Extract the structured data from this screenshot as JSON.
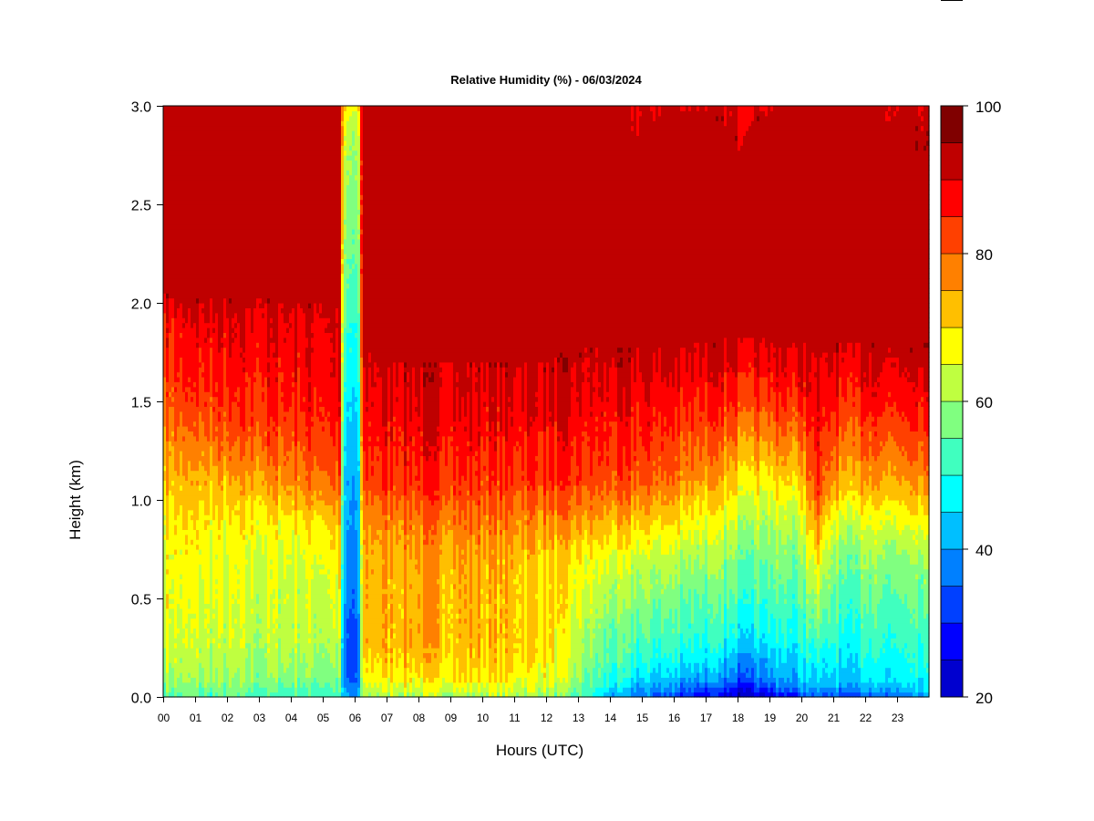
{
  "chart_data": {
    "type": "heatmap",
    "title": "Relative Humidity (%) - 06/03/2024",
    "xlabel": "Hours (UTC)",
    "ylabel": "Height (km)",
    "x_range": [
      0,
      24
    ],
    "y_range": [
      0.0,
      3.0
    ],
    "x_ticks": [
      "00",
      "01",
      "02",
      "03",
      "04",
      "05",
      "06",
      "07",
      "08",
      "09",
      "10",
      "11",
      "12",
      "13",
      "14",
      "15",
      "16",
      "17",
      "18",
      "19",
      "20",
      "21",
      "22",
      "23"
    ],
    "y_ticks": [
      "0.0",
      "0.5",
      "1.0",
      "1.5",
      "2.0",
      "2.5",
      "3.0"
    ],
    "colorbar": {
      "range": [
        20,
        100
      ],
      "tick_labels": [
        "20",
        "40",
        "60",
        "80",
        "100"
      ],
      "levels": [
        20,
        25,
        30,
        35,
        40,
        45,
        50,
        55,
        60,
        65,
        70,
        75,
        80,
        85,
        90,
        95,
        100
      ],
      "colors": [
        "#00008f",
        "#0000cf",
        "#0000ff",
        "#0040ff",
        "#0080ff",
        "#00bfff",
        "#00ffff",
        "#40ffbf",
        "#80ff80",
        "#bfff40",
        "#ffff00",
        "#ffbf00",
        "#ff8000",
        "#ff4000",
        "#ff0000",
        "#bf0000",
        "#800000"
      ]
    },
    "profile_heights_km": [
      0.0,
      0.05,
      0.1,
      0.2,
      0.3,
      0.5,
      0.7,
      0.9,
      1.1,
      1.3,
      1.5,
      1.7,
      1.9,
      2.1,
      2.5,
      2.9,
      3.0
    ],
    "profiles": [
      {
        "hour": 0.0,
        "rh": [
          60,
          63,
          66,
          68,
          70,
          72,
          72,
          74,
          78,
          82,
          86,
          90,
          92,
          99,
          99,
          99,
          99
        ]
      },
      {
        "hour": 1.0,
        "rh": [
          58,
          62,
          65,
          67,
          68,
          70,
          72,
          74,
          78,
          83,
          88,
          91,
          94,
          99,
          99,
          99,
          99
        ]
      },
      {
        "hour": 2.0,
        "rh": [
          58,
          62,
          64,
          66,
          68,
          69,
          70,
          73,
          78,
          84,
          89,
          92,
          94,
          99,
          99,
          99,
          99
        ]
      },
      {
        "hour": 3.0,
        "rh": [
          57,
          61,
          63,
          65,
          67,
          68,
          70,
          73,
          80,
          86,
          90,
          92,
          94,
          99,
          99,
          99,
          99
        ]
      },
      {
        "hour": 4.0,
        "rh": [
          57,
          61,
          64,
          66,
          68,
          69,
          70,
          74,
          82,
          87,
          91,
          93,
          95,
          99,
          99,
          99,
          99
        ]
      },
      {
        "hour": 5.0,
        "rh": [
          56,
          60,
          62,
          65,
          67,
          69,
          71,
          76,
          85,
          89,
          92,
          94,
          95,
          99,
          99,
          99,
          99
        ]
      },
      {
        "hour": 5.55,
        "rh": [
          56,
          60,
          62,
          65,
          68,
          71,
          74,
          78,
          86,
          90,
          93,
          95,
          96,
          99,
          99,
          99,
          99
        ]
      },
      {
        "hour": 5.65,
        "rh": [
          48,
          44,
          42,
          40,
          42,
          45,
          46,
          47,
          48,
          50,
          52,
          55,
          58,
          62,
          65,
          70,
          75
        ]
      },
      {
        "hour": 5.8,
        "rh": [
          46,
          40,
          38,
          37,
          38,
          40,
          42,
          44,
          45,
          47,
          49,
          52,
          55,
          58,
          62,
          66,
          72
        ]
      },
      {
        "hour": 6.0,
        "rh": [
          46,
          40,
          38,
          37,
          38,
          40,
          42,
          44,
          45,
          47,
          49,
          52,
          55,
          58,
          62,
          66,
          72
        ]
      },
      {
        "hour": 6.15,
        "rh": [
          48,
          44,
          42,
          40,
          42,
          45,
          46,
          47,
          48,
          50,
          52,
          55,
          58,
          62,
          65,
          70,
          75
        ]
      },
      {
        "hour": 6.25,
        "rh": [
          64,
          68,
          72,
          76,
          78,
          78,
          78,
          82,
          88,
          91,
          94,
          96,
          99,
          99,
          99,
          99,
          99
        ]
      },
      {
        "hour": 7.0,
        "rh": [
          66,
          70,
          74,
          77,
          78,
          78,
          79,
          83,
          89,
          92,
          95,
          97,
          99,
          99,
          99,
          99,
          99
        ]
      },
      {
        "hour": 8.0,
        "rh": [
          66,
          70,
          74,
          78,
          79,
          79,
          80,
          84,
          90,
          93,
          96,
          97,
          99,
          99,
          99,
          99,
          99
        ]
      },
      {
        "hour": 9.0,
        "rh": [
          66,
          70,
          74,
          77,
          78,
          78,
          80,
          84,
          90,
          93,
          96,
          97,
          99,
          99,
          99,
          99,
          99
        ]
      },
      {
        "hour": 10.0,
        "rh": [
          66,
          70,
          74,
          77,
          78,
          78,
          79,
          84,
          89,
          92,
          95,
          97,
          99,
          99,
          99,
          99,
          99
        ]
      },
      {
        "hour": 11.0,
        "rh": [
          66,
          70,
          73,
          76,
          77,
          77,
          78,
          83,
          89,
          92,
          95,
          97,
          99,
          99,
          99,
          99,
          99
        ]
      },
      {
        "hour": 12.0,
        "rh": [
          65,
          69,
          72,
          74,
          75,
          75,
          76,
          82,
          89,
          92,
          95,
          97,
          99,
          99,
          99,
          99,
          99
        ]
      },
      {
        "hour": 13.0,
        "rh": [
          58,
          61,
          64,
          66,
          67,
          70,
          73,
          80,
          88,
          91,
          94,
          96,
          99,
          99,
          99,
          99,
          99
        ]
      },
      {
        "hour": 14.0,
        "rh": [
          46,
          52,
          55,
          58,
          60,
          65,
          70,
          78,
          87,
          90,
          93,
          96,
          99,
          99,
          99,
          99,
          99
        ]
      },
      {
        "hour": 15.0,
        "rh": [
          40,
          46,
          50,
          55,
          58,
          63,
          68,
          77,
          86,
          90,
          93,
          96,
          99,
          99,
          99,
          96,
          96
        ]
      },
      {
        "hour": 16.0,
        "rh": [
          37,
          44,
          48,
          54,
          57,
          62,
          67,
          75,
          84,
          88,
          92,
          96,
          99,
          99,
          99,
          99,
          96
        ]
      },
      {
        "hour": 17.0,
        "rh": [
          32,
          40,
          46,
          52,
          56,
          60,
          65,
          72,
          80,
          86,
          91,
          95,
          99,
          99,
          99,
          99,
          96
        ]
      },
      {
        "hour": 18.0,
        "rh": [
          26,
          34,
          40,
          46,
          52,
          58,
          62,
          68,
          75,
          82,
          89,
          94,
          99,
          99,
          99,
          96,
          94
        ]
      },
      {
        "hour": 19.0,
        "rh": [
          30,
          38,
          44,
          48,
          53,
          58,
          62,
          67,
          74,
          82,
          89,
          94,
          99,
          99,
          99,
          99,
          96
        ]
      },
      {
        "hour": 20.0,
        "rh": [
          36,
          44,
          48,
          51,
          54,
          58,
          62,
          68,
          76,
          83,
          90,
          95,
          99,
          99,
          99,
          99,
          99
        ]
      },
      {
        "hour": 20.5,
        "rh": [
          42,
          48,
          52,
          56,
          60,
          68,
          76,
          84,
          92,
          94,
          96,
          97,
          99,
          99,
          99,
          99,
          99
        ]
      },
      {
        "hour": 21.0,
        "rh": [
          37,
          45,
          49,
          52,
          55,
          59,
          63,
          70,
          80,
          86,
          91,
          95,
          99,
          99,
          99,
          99,
          99
        ]
      },
      {
        "hour": 22.0,
        "rh": [
          39,
          46,
          50,
          53,
          55,
          59,
          63,
          70,
          79,
          85,
          91,
          95,
          99,
          99,
          99,
          99,
          98
        ]
      },
      {
        "hour": 23.0,
        "rh": [
          40,
          47,
          51,
          53,
          55,
          59,
          63,
          70,
          79,
          85,
          91,
          95,
          99,
          99,
          99,
          96,
          95
        ]
      },
      {
        "hour": 24.0,
        "rh": [
          41,
          48,
          51,
          53,
          55,
          59,
          63,
          71,
          80,
          86,
          91,
          95,
          99,
          99,
          99,
          96,
          95
        ]
      }
    ]
  }
}
